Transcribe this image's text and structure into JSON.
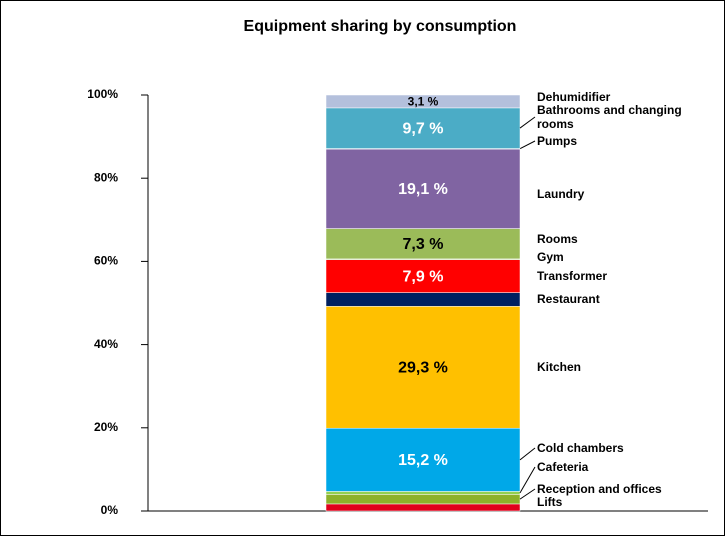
{
  "chart_data": {
    "type": "stacked_bar",
    "title": "Equipment sharing by consumption",
    "categories": [
      null
    ],
    "ylim": [
      0,
      100
    ],
    "yticks": [
      {
        "value": 0,
        "label": "0%"
      },
      {
        "value": 20,
        "label": "20%"
      },
      {
        "value": 40,
        "label": "40%"
      },
      {
        "value": 60,
        "label": "60%"
      },
      {
        "value": 80,
        "label": "80%"
      },
      {
        "value": 100,
        "label": "100%"
      }
    ],
    "series": [
      {
        "name": "Lifts",
        "color": "#e0001b",
        "values": [
          1.7
        ]
      },
      {
        "name": "Reception and offices",
        "color": "#8db12a",
        "values": [
          2.3
        ]
      },
      {
        "name": "Cafeteria",
        "color": "#92d050",
        "values": [
          0.7
        ]
      },
      {
        "name": "Cold chambers",
        "color": "#00a8e8",
        "values": [
          15.2
        ],
        "value_labels": [
          "15,2 %"
        ]
      },
      {
        "name": "Kitchen",
        "color": "#ffc000",
        "values": [
          29.3
        ],
        "value_labels": [
          "29,3 %"
        ]
      },
      {
        "name": "Restaurant",
        "color": "#002060",
        "values": [
          3.3
        ]
      },
      {
        "name": "Transformer",
        "color": "#ff0000",
        "values": [
          7.9
        ],
        "value_labels": [
          "7,9 %"
        ]
      },
      {
        "name": "Gym",
        "color": "#9bbb59",
        "values": [
          0.2
        ]
      },
      {
        "name": "Rooms",
        "color": "#9bbb59",
        "values": [
          7.3
        ],
        "value_labels": [
          "7,3 %"
        ]
      },
      {
        "name": "Laundry",
        "color": "#8064a2",
        "values": [
          19.1
        ],
        "value_labels": [
          "19,1 %"
        ]
      },
      {
        "name": "Pumps",
        "color": "#4bacc6",
        "values": [
          0.2
        ]
      },
      {
        "name": "Bathrooms and changing rooms",
        "color": "#4bacc6",
        "values": [
          9.7
        ],
        "value_labels": [
          "9,7 %"
        ]
      },
      {
        "name": "Dehumidifier",
        "color": "#b4c0dc",
        "values": [
          3.1
        ],
        "value_labels": [
          "3,1 %"
        ]
      }
    ]
  }
}
